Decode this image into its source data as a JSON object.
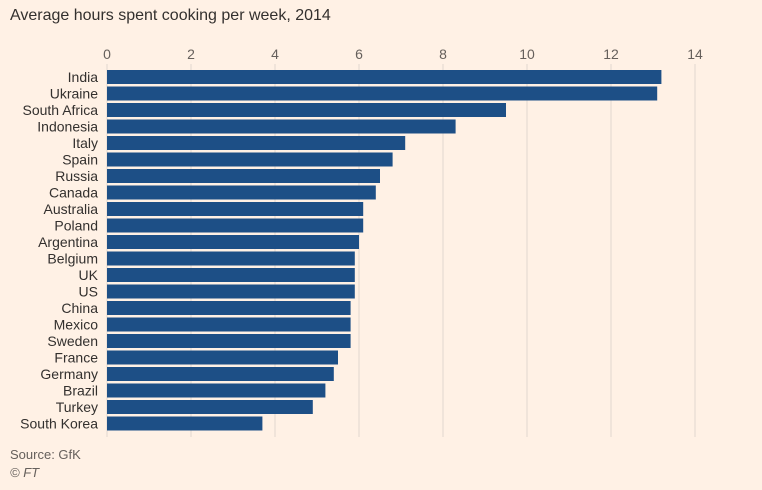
{
  "chart_data": {
    "type": "bar",
    "orientation": "horizontal",
    "title": "Average hours spent cooking per week, 2014",
    "categories": [
      "India",
      "Ukraine",
      "South Africa",
      "Indonesia",
      "Italy",
      "Spain",
      "Russia",
      "Canada",
      "Australia",
      "Poland",
      "Argentina",
      "Belgium",
      "UK",
      "US",
      "China",
      "Mexico",
      "Sweden",
      "France",
      "Germany",
      "Brazil",
      "Turkey",
      "South Korea"
    ],
    "values": [
      13.2,
      13.1,
      9.5,
      8.3,
      7.1,
      6.8,
      6.5,
      6.4,
      6.1,
      6.1,
      6.0,
      5.9,
      5.9,
      5.9,
      5.8,
      5.8,
      5.8,
      5.5,
      5.4,
      5.2,
      4.9,
      3.7
    ],
    "xlim": [
      0,
      14
    ],
    "xticks": [
      "0",
      "2",
      "4",
      "6",
      "8",
      "10",
      "12",
      "14"
    ],
    "xtick_values": [
      0,
      2,
      4,
      6,
      8,
      10,
      12,
      14
    ],
    "xaxis_position": "top",
    "grid": true,
    "bar_color": "#1d4f86",
    "grid_color": "#e2d8cf",
    "background": "#fff1e5"
  },
  "footer": {
    "source": "Source: GfK",
    "credit": "© FT"
  }
}
